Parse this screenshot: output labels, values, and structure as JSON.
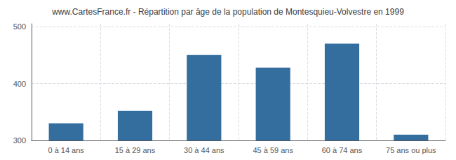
{
  "chart_data": {
    "type": "bar",
    "title": "www.CartesFrance.fr - Répartition par âge de la population de Montesquieu-Volvestre en 1999",
    "categories": [
      "0 à 14 ans",
      "15 à 29 ans",
      "30 à 44 ans",
      "45 à 59 ans",
      "60 à 74 ans",
      "75 ans ou plus"
    ],
    "values": [
      330,
      352,
      450,
      428,
      470,
      310
    ],
    "color": "#336e9e",
    "ylim": [
      300,
      505
    ],
    "yticks": [
      300,
      400,
      500
    ],
    "grid": true
  }
}
